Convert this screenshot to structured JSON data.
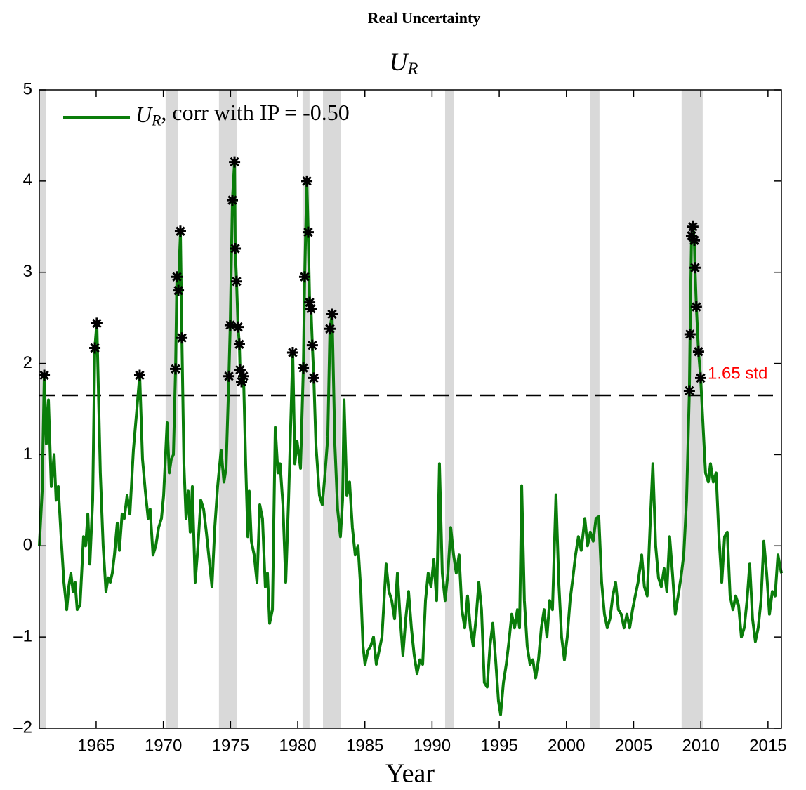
{
  "chart_data": {
    "type": "line",
    "title": "Real Uncertainty",
    "subtitle": "U_R",
    "xlabel": "Year",
    "xlim": [
      1960.77,
      2016.0
    ],
    "xticks": [
      1965,
      1970,
      1975,
      1980,
      1985,
      1990,
      1995,
      2000,
      2005,
      2010,
      2015
    ],
    "ylim": [
      -2,
      5
    ],
    "yticks": [
      {
        "value": -2,
        "label": "–2"
      },
      {
        "value": -1,
        "label": "–1"
      },
      0,
      1,
      2,
      3,
      4,
      5
    ],
    "legend_position": "upper left",
    "shaded_regions": [
      [
        1960.77,
        1961.24
      ],
      [
        1970.17,
        1971.11
      ],
      [
        1974.14,
        1975.5
      ],
      [
        1980.36,
        1980.88
      ],
      [
        1981.88,
        1983.23
      ],
      [
        1990.97,
        1991.65
      ],
      [
        2001.78,
        2002.46
      ],
      [
        2008.57,
        2010.14
      ]
    ],
    "shade_color": "#d9d9d9",
    "threshold": {
      "value": 1.65,
      "label": "1.65 std",
      "color": "#ff0000"
    },
    "marker_color": "#000000",
    "x": [
      1960.77,
      1960.98,
      1961.14,
      1961.29,
      1961.45,
      1961.66,
      1961.87,
      1962.02,
      1962.18,
      1962.39,
      1962.6,
      1962.81,
      1962.96,
      1963.12,
      1963.28,
      1963.43,
      1963.59,
      1963.8,
      1964.06,
      1964.22,
      1964.38,
      1964.53,
      1964.74,
      1964.9,
      1965.05,
      1965.31,
      1965.52,
      1965.73,
      1965.89,
      1966.05,
      1966.2,
      1966.36,
      1966.57,
      1966.73,
      1966.93,
      1967.09,
      1967.3,
      1967.51,
      1967.77,
      1968.03,
      1968.24,
      1968.45,
      1968.66,
      1968.87,
      1969.02,
      1969.23,
      1969.44,
      1969.65,
      1969.86,
      1970.02,
      1970.28,
      1970.44,
      1970.59,
      1970.75,
      1970.91,
      1971.01,
      1971.12,
      1971.27,
      1971.38,
      1971.53,
      1971.69,
      1971.85,
      1972.0,
      1972.16,
      1972.37,
      1972.58,
      1972.79,
      1973.0,
      1973.2,
      1973.41,
      1973.62,
      1973.83,
      1974.04,
      1974.3,
      1974.51,
      1974.67,
      1974.88,
      1974.98,
      1975.14,
      1975.3,
      1975.35,
      1975.45,
      1975.56,
      1975.66,
      1975.71,
      1975.82,
      1975.97,
      1976.13,
      1976.29,
      1976.39,
      1976.55,
      1976.76,
      1976.97,
      1977.18,
      1977.38,
      1977.59,
      1977.75,
      1977.91,
      1978.12,
      1978.33,
      1978.53,
      1978.69,
      1978.9,
      1979.11,
      1979.32,
      1979.63,
      1979.79,
      1979.95,
      1980.21,
      1980.42,
      1980.52,
      1980.68,
      1980.78,
      1980.89,
      1980.99,
      1981.09,
      1981.2,
      1981.36,
      1981.62,
      1981.83,
      1982.04,
      1982.24,
      1982.4,
      1982.56,
      1982.77,
      1982.97,
      1983.18,
      1983.34,
      1983.45,
      1983.66,
      1983.86,
      1984.07,
      1984.28,
      1984.49,
      1984.7,
      1984.86,
      1985.01,
      1985.22,
      1985.43,
      1985.64,
      1985.85,
      1986.06,
      1986.27,
      1986.58,
      1986.79,
      1987.0,
      1987.21,
      1987.42,
      1987.63,
      1987.83,
      1988.04,
      1988.25,
      1988.46,
      1988.67,
      1988.88,
      1989.09,
      1989.3,
      1989.51,
      1989.71,
      1989.92,
      1990.13,
      1990.34,
      1990.55,
      1990.76,
      1990.97,
      1991.18,
      1991.39,
      1991.6,
      1991.8,
      1992.01,
      1992.22,
      1992.43,
      1992.64,
      1992.85,
      1993.06,
      1993.27,
      1993.48,
      1993.68,
      1993.89,
      1994.1,
      1994.31,
      1994.52,
      1994.73,
      1994.94,
      1995.1,
      1995.31,
      1995.52,
      1995.72,
      1995.93,
      1996.14,
      1996.35,
      1996.51,
      1996.67,
      1996.87,
      1997.08,
      1997.29,
      1997.5,
      1997.71,
      1997.92,
      1998.13,
      1998.34,
      1998.55,
      1998.75,
      1998.96,
      1999.22,
      1999.43,
      1999.64,
      1999.85,
      2000.06,
      2000.27,
      2000.48,
      2000.68,
      2000.89,
      2001.1,
      2001.37,
      2001.57,
      2001.78,
      2001.99,
      2002.2,
      2002.41,
      2002.62,
      2002.83,
      2003.04,
      2003.24,
      2003.45,
      2003.66,
      2003.87,
      2004.08,
      2004.29,
      2004.5,
      2004.71,
      2004.92,
      2005.12,
      2005.33,
      2005.6,
      2005.8,
      2006.01,
      2006.22,
      2006.43,
      2006.64,
      2006.85,
      2007.06,
      2007.27,
      2007.47,
      2007.68,
      2007.89,
      2008.1,
      2008.31,
      2008.52,
      2008.73,
      2008.94,
      2009.15,
      2009.2,
      2009.31,
      2009.41,
      2009.52,
      2009.57,
      2009.67,
      2009.83,
      2009.99,
      2010.14,
      2010.35,
      2010.56,
      2010.72,
      2010.93,
      2011.14,
      2011.35,
      2011.56,
      2011.77,
      2011.97,
      2012.18,
      2012.39,
      2012.6,
      2012.81,
      2013.02,
      2013.23,
      2013.44,
      2013.64,
      2013.85,
      2014.06,
      2014.27,
      2014.48,
      2014.69,
      2014.9,
      2015.11,
      2015.32,
      2015.53,
      2015.74,
      2016.0
    ],
    "series": [
      {
        "name": "U_R, corr with IP = -0.50",
        "color": "#0a7d0a",
        "values": [
          0.0,
          0.6,
          1.87,
          1.12,
          1.6,
          0.65,
          1.0,
          0.5,
          0.65,
          0.1,
          -0.4,
          -0.7,
          -0.45,
          -0.3,
          -0.5,
          -0.4,
          -0.7,
          -0.65,
          0.1,
          0.0,
          0.35,
          -0.2,
          0.5,
          2.17,
          2.44,
          0.8,
          0.0,
          -0.5,
          -0.35,
          -0.4,
          -0.3,
          -0.1,
          0.25,
          -0.05,
          0.35,
          0.3,
          0.55,
          0.35,
          1.05,
          1.5,
          1.87,
          0.95,
          0.6,
          0.3,
          0.4,
          -0.1,
          0.0,
          0.2,
          0.3,
          0.55,
          1.35,
          0.8,
          0.95,
          1.0,
          1.94,
          2.95,
          2.8,
          3.45,
          2.28,
          0.9,
          0.3,
          0.6,
          0.15,
          0.65,
          -0.4,
          0.0,
          0.5,
          0.4,
          0.15,
          -0.15,
          -0.45,
          0.2,
          0.65,
          1.05,
          0.7,
          0.85,
          1.86,
          2.42,
          3.79,
          4.21,
          3.26,
          2.9,
          2.4,
          2.21,
          1.93,
          1.8,
          1.86,
          0.9,
          0.1,
          0.6,
          0.05,
          -0.1,
          -0.4,
          0.45,
          0.3,
          -0.45,
          -0.3,
          -0.85,
          -0.7,
          1.3,
          0.8,
          0.9,
          0.45,
          -0.4,
          0.5,
          2.12,
          0.9,
          1.15,
          0.85,
          1.95,
          2.95,
          4.0,
          3.44,
          2.67,
          2.6,
          2.2,
          1.84,
          1.1,
          0.55,
          0.45,
          0.8,
          1.2,
          2.38,
          2.54,
          1.1,
          0.4,
          0.1,
          0.5,
          1.6,
          0.55,
          0.7,
          0.2,
          -0.1,
          0.0,
          -0.5,
          -1.1,
          -1.3,
          -1.15,
          -1.1,
          -1.0,
          -1.3,
          -1.15,
          -1.0,
          -0.2,
          -0.5,
          -0.6,
          -0.8,
          -0.3,
          -0.8,
          -1.2,
          -0.8,
          -0.5,
          -0.9,
          -1.2,
          -1.4,
          -1.25,
          -1.3,
          -0.6,
          -0.3,
          -0.45,
          -0.15,
          -0.6,
          0.9,
          -0.3,
          -0.6,
          -0.3,
          0.2,
          -0.1,
          -0.3,
          -0.1,
          -0.7,
          -0.9,
          -0.55,
          -0.9,
          -1.1,
          -0.8,
          -0.4,
          -0.7,
          -1.5,
          -1.55,
          -1.1,
          -0.85,
          -1.25,
          -1.7,
          -1.85,
          -1.5,
          -1.3,
          -1.05,
          -0.75,
          -0.9,
          -0.7,
          -0.9,
          0.66,
          -0.6,
          -1.1,
          -1.3,
          -1.25,
          -1.45,
          -1.25,
          -0.9,
          -0.7,
          -1.0,
          -0.6,
          -0.7,
          0.56,
          -0.4,
          -1.0,
          -1.25,
          -1.0,
          -0.6,
          -0.35,
          -0.1,
          0.1,
          -0.05,
          0.3,
          0.0,
          0.15,
          0.05,
          0.3,
          0.32,
          -0.4,
          -0.75,
          -0.9,
          -0.8,
          -0.55,
          -0.4,
          -0.7,
          -0.75,
          -0.9,
          -0.75,
          -0.9,
          -0.7,
          -0.55,
          -0.4,
          -0.1,
          -0.45,
          -0.55,
          0.2,
          0.9,
          0.0,
          -0.35,
          -0.45,
          -0.25,
          -0.5,
          0.1,
          -0.3,
          -0.75,
          -0.55,
          -0.35,
          -0.1,
          0.5,
          1.7,
          2.32,
          3.4,
          3.5,
          3.35,
          3.05,
          2.62,
          2.13,
          1.84,
          1.4,
          0.8,
          0.7,
          0.9,
          0.7,
          0.8,
          0.1,
          -0.4,
          0.1,
          0.15,
          -0.55,
          -0.7,
          -0.55,
          -0.65,
          -1.0,
          -0.9,
          -0.6,
          -0.2,
          -0.8,
          -1.05,
          -0.9,
          -0.6,
          0.05,
          -0.3,
          -0.75,
          -0.5,
          -0.55,
          -0.1,
          -0.3
        ]
      }
    ]
  }
}
